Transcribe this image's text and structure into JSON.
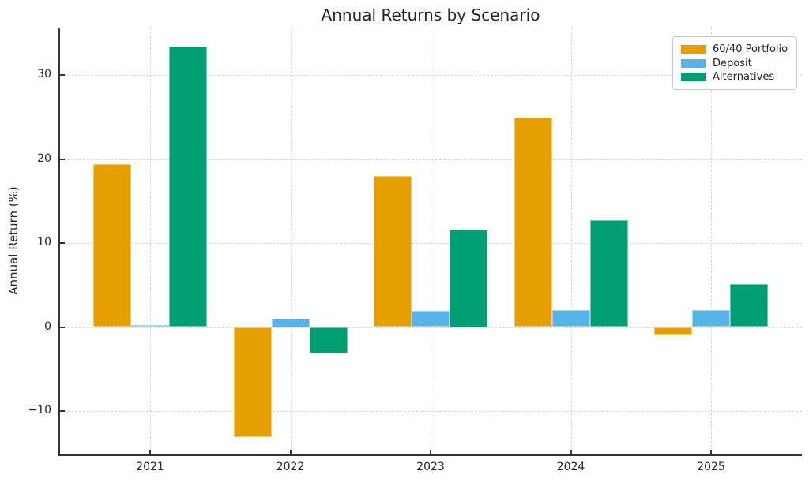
{
  "chart_data": {
    "type": "bar",
    "title": "Annual Returns by Scenario",
    "xlabel": "",
    "ylabel": "Annual Return (%)",
    "categories": [
      "2021",
      "2022",
      "2023",
      "2024",
      "2025"
    ],
    "series": [
      {
        "name": "60/40 Portfolio",
        "color": "#E69F00",
        "values": [
          19.4,
          -13.1,
          18.0,
          24.9,
          -1.0
        ]
      },
      {
        "name": "Deposit",
        "color": "#56B4E9",
        "values": [
          0.2,
          1.0,
          1.9,
          2.0,
          2.0
        ]
      },
      {
        "name": "Alternatives",
        "color": "#009E73",
        "values": [
          33.4,
          -3.1,
          11.6,
          12.7,
          5.1
        ]
      }
    ],
    "yticks": [
      -10,
      0,
      10,
      20,
      30
    ],
    "ylim": [
      -15.2,
      35.6
    ],
    "grid": true,
    "grid_style": "dashed",
    "legend_position": "upper right",
    "legend_labels": [
      "60/40 Portfolio",
      "Deposit",
      "Alternatives"
    ]
  },
  "style": {
    "background": "#ffffff",
    "text_color": "#262626",
    "axis_color": "#333333",
    "grid_color": "#d9d9d9",
    "legend_border_color": "#c9c9c9"
  }
}
